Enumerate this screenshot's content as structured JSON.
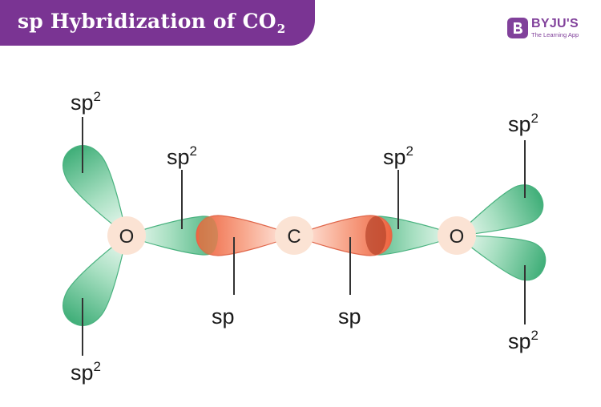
{
  "header": {
    "title_main": "sp Hybridization of CO",
    "title_sub": "2"
  },
  "logo": {
    "name": "BYJU'S",
    "tagline": "The Learning App",
    "icon": "byjus-b-icon",
    "color": "#81419b"
  },
  "colors": {
    "header_bg": "#7a3493",
    "sp2_lobe": "#4dba86",
    "sp_lobe": "#f06a4a",
    "atom": "#fbe3d4"
  },
  "molecule": {
    "atoms": {
      "left_oxygen": "O",
      "carbon": "C",
      "right_oxygen": "O"
    },
    "labels": {
      "left_top": {
        "base": "sp",
        "sup": "2"
      },
      "left_bottom": {
        "base": "sp",
        "sup": "2"
      },
      "left_bond": {
        "base": "sp",
        "sup": "2"
      },
      "carbon_left": {
        "base": "sp"
      },
      "carbon_right": {
        "base": "sp"
      },
      "right_bond": {
        "base": "sp",
        "sup": "2"
      },
      "right_top": {
        "base": "sp",
        "sup": "2"
      },
      "right_bottom": {
        "base": "sp",
        "sup": "2"
      }
    }
  }
}
